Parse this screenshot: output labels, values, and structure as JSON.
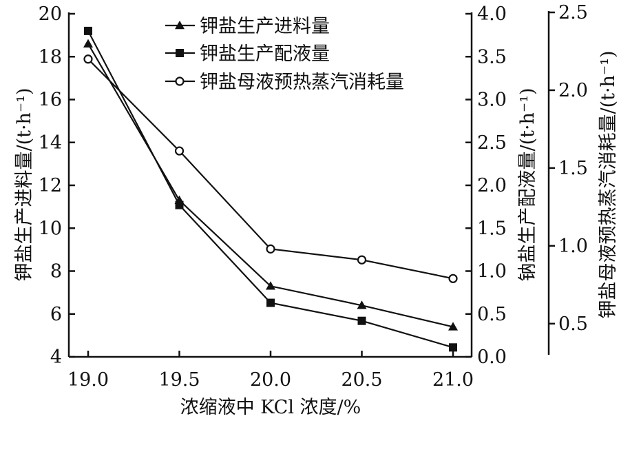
{
  "chart_data": {
    "type": "line",
    "x": [
      19.0,
      19.5,
      20.0,
      20.5,
      21.0
    ],
    "x_ticks": [
      "19.0",
      "19.5",
      "20.0",
      "20.5",
      "21.0"
    ],
    "xlabel": "浓缩液中 KCl 浓度/%",
    "xlim": [
      19.0,
      21.0
    ],
    "axes": {
      "left": {
        "label": "钾盐生产进料量/(t·h⁻¹)",
        "ylim": [
          4,
          20
        ],
        "ticks": [
          "4",
          "6",
          "8",
          "10",
          "12",
          "14",
          "16",
          "18",
          "20"
        ]
      },
      "right1": {
        "label": "钠盐生产配液量/(t·h⁻¹)",
        "ylim": [
          0.0,
          4.0
        ],
        "ticks": [
          "0.0",
          "0.5",
          "1.0",
          "1.5",
          "2.0",
          "2.5",
          "3.0",
          "3.5",
          "4.0"
        ]
      },
      "right2": {
        "label": "钾盐母液预热蒸汽消耗量/(t·h⁻¹)",
        "ylim": [
          0.3,
          2.5
        ],
        "ticks": [
          "0.5",
          "1.0",
          "1.5",
          "2.0",
          "2.5"
        ]
      }
    },
    "series": [
      {
        "name": "钾盐生产进料量",
        "axis": "left",
        "marker": "triangle",
        "values": [
          18.6,
          11.3,
          7.3,
          6.4,
          5.4
        ]
      },
      {
        "name": "钾盐生产配液量",
        "axis": "right1",
        "marker": "square",
        "values": [
          3.8,
          1.77,
          0.63,
          0.42,
          0.11
        ]
      },
      {
        "name": "钾盐母液预热蒸汽消耗量",
        "axis": "right2",
        "marker": "circle",
        "values": [
          2.2,
          1.61,
          0.98,
          0.91,
          0.79
        ]
      }
    ],
    "legend_position": "top-right",
    "grid": false
  }
}
